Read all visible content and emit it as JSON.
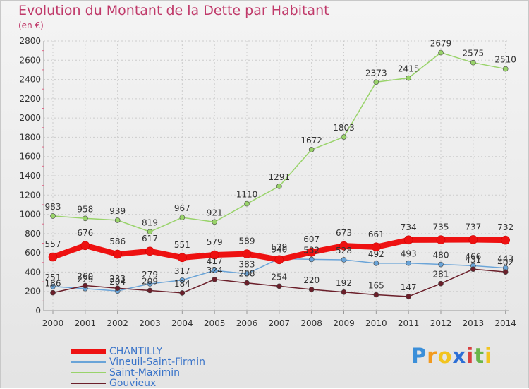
{
  "chart_data": {
    "type": "line",
    "title": "Evolution du Montant de la Dette par Habitant",
    "unit": "(en €)",
    "x": [
      "2000",
      "2001",
      "2002",
      "2003",
      "2004",
      "2005",
      "2006",
      "2007",
      "2008",
      "2009",
      "2010",
      "2011",
      "2012",
      "2013",
      "2014"
    ],
    "ylim": [
      0,
      2800
    ],
    "yticks": [
      "0",
      "200",
      "400",
      "600",
      "800",
      "1000",
      "1200",
      "1400",
      "1600",
      "1800",
      "2000",
      "2200",
      "2400",
      "2600",
      "2800"
    ],
    "grid": true,
    "legend_position": "bottom-left",
    "series": [
      {
        "name": "CHANTILLY",
        "color": "#ee1111",
        "values": [
          557,
          676,
          586,
          617,
          551,
          579,
          589,
          529,
          607,
          673,
          661,
          734,
          735,
          737,
          732
        ]
      },
      {
        "name": "Vineuil-Saint-Firmin",
        "color": "#6aa4d8",
        "values": [
          251,
          229,
          204,
          279,
          317,
          417,
          383,
          540,
          532,
          528,
          492,
          493,
          480,
          466,
          443
        ]
      },
      {
        "name": "Saint-Maximin",
        "color": "#99d36a",
        "values": [
          983,
          958,
          939,
          819,
          967,
          921,
          1110,
          1291,
          1672,
          1803,
          2373,
          2415,
          2679,
          2575,
          2510
        ]
      },
      {
        "name": "Gouvieux",
        "color": "#6b1f2a",
        "values": [
          186,
          260,
          233,
          209,
          184,
          324,
          288,
          254,
          220,
          192,
          165,
          147,
          281,
          431,
          402
        ]
      }
    ]
  },
  "legend_order": [
    "CHANTILLY",
    "Vineuil-Saint-Firmin",
    "Saint-Maximin",
    "Gouvieux"
  ],
  "brand": {
    "letters": [
      "P",
      "r",
      "o",
      "x",
      "i",
      "t",
      "i"
    ],
    "colors": [
      "#3b8fd9",
      "#f29a1f",
      "#f2c41f",
      "#2d6fd6",
      "#d84040",
      "#6ab54a",
      "#f2c41f"
    ]
  }
}
